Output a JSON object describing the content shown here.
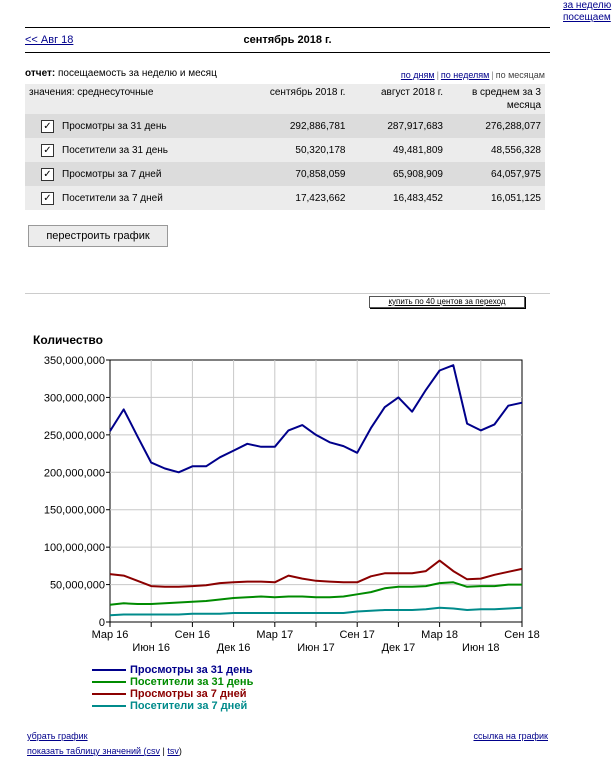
{
  "top_right_links": [
    "за неделю",
    "посещаем"
  ],
  "nav": {
    "prev": "<< Авг 18",
    "month": "сентябрь 2018 г."
  },
  "report": {
    "label": "отчет:",
    "value": "посещаемость за неделю и месяц"
  },
  "views": [
    "по дням",
    "по неделям",
    "по месяцам"
  ],
  "table": {
    "headers": [
      "значения: среднесуточные",
      "сентябрь 2018 г.",
      "август 2018 г.",
      "в среднем за 3 месяца"
    ],
    "rows": [
      {
        "name": "Просмотры за 31 день",
        "v1": "292,886,781",
        "v2": "287,917,683",
        "v3": "276,288,077",
        "checked": "✓"
      },
      {
        "name": "Посетители за 31 день",
        "v1": "50,320,178",
        "v2": "49,481,809",
        "v3": "48,556,328",
        "checked": "✓"
      },
      {
        "name": "Просмотры за 7 дней",
        "v1": "70,858,059",
        "v2": "65,908,909",
        "v3": "64,057,975",
        "checked": "✓"
      },
      {
        "name": "Посетители за 7 дней",
        "v1": "17,423,662",
        "v2": "16,483,452",
        "v3": "16,051,125",
        "checked": "✓"
      }
    ]
  },
  "rebuild_button": "перестроить график",
  "ad_link": "купить по 40 центов за переход",
  "footer": {
    "remove": "убрать график",
    "show_table": "показать таблицу значений (",
    "csv": "csv",
    "sep": " | ",
    "tsv": "tsv",
    "close": ")",
    "graph_link": "ссылка на график"
  },
  "chart_data": {
    "type": "line",
    "ylabel": "Количество",
    "ylim": [
      0,
      350000000
    ],
    "yticks": [
      "0",
      "50,000,000",
      "100,000,000",
      "150,000,000",
      "200,000,000",
      "250,000,000",
      "300,000,000",
      "350,000,000"
    ],
    "xticks": [
      "Мар 16",
      "Июн 16",
      "Сен 16",
      "Дек 16",
      "Мар 17",
      "Июн 17",
      "Сен 17",
      "Дек 17",
      "Мар 18",
      "Июн 18",
      "Сен 18"
    ],
    "series": [
      {
        "name": "Просмотры за 31 день",
        "color": "#00008b",
        "values": [
          255000000,
          284000000,
          248000000,
          213000000,
          205000000,
          200000000,
          208000000,
          208000000,
          220000000,
          229000000,
          238000000,
          234000000,
          234000000,
          256000000,
          263000000,
          250000000,
          240000000,
          235000000,
          226000000,
          259000000,
          287000000,
          300000000,
          281000000,
          310000000,
          336000000,
          343000000,
          265000000,
          256000000,
          264000000,
          289000000,
          293000000
        ]
      },
      {
        "name": "Посетители за 31 день",
        "color": "#008b00",
        "values": [
          23000000,
          25000000,
          24000000,
          24000000,
          25000000,
          26000000,
          27000000,
          28000000,
          30000000,
          32000000,
          33000000,
          34000000,
          33000000,
          34000000,
          34000000,
          33000000,
          33000000,
          34000000,
          37000000,
          40000000,
          45000000,
          47000000,
          47000000,
          48000000,
          52000000,
          53000000,
          47000000,
          48000000,
          48000000,
          50000000,
          50000000
        ]
      },
      {
        "name": "Просмотры за 7 дней",
        "color": "#8b0000",
        "values": [
          64000000,
          62000000,
          55000000,
          48000000,
          47000000,
          47000000,
          48000000,
          49000000,
          52000000,
          53000000,
          54000000,
          54000000,
          53000000,
          62000000,
          58000000,
          55000000,
          54000000,
          53000000,
          53000000,
          61000000,
          65000000,
          65000000,
          65000000,
          68000000,
          82000000,
          68000000,
          57000000,
          58000000,
          63000000,
          67000000,
          71000000
        ]
      },
      {
        "name": "Посетители за 7 дней",
        "color": "#008b8b",
        "values": [
          9000000,
          10000000,
          10000000,
          10000000,
          10000000,
          10000000,
          11000000,
          11000000,
          11000000,
          12000000,
          12000000,
          12000000,
          12000000,
          12000000,
          12000000,
          12000000,
          12000000,
          12000000,
          14000000,
          15000000,
          16000000,
          16000000,
          16000000,
          17000000,
          19000000,
          18000000,
          16000000,
          17000000,
          17000000,
          18000000,
          19000000
        ]
      }
    ]
  }
}
